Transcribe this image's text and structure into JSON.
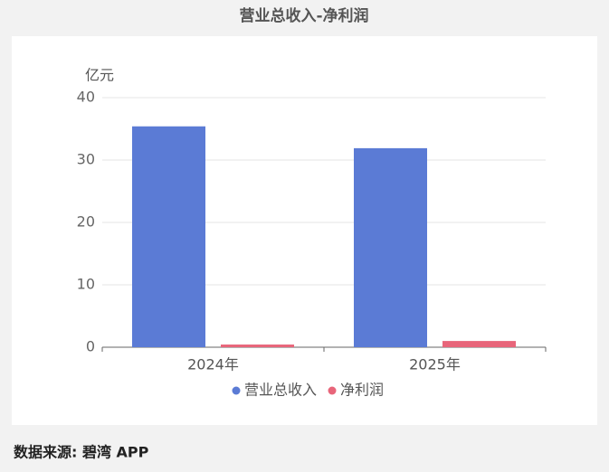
{
  "chart_data": {
    "type": "bar",
    "title": "营业总收入-净利润",
    "y_label": "亿元",
    "categories": [
      "2024年",
      "2025年"
    ],
    "series": [
      {
        "name": "营业总收入",
        "color": "#5b7bd5",
        "values": [
          35.4,
          31.9
        ]
      },
      {
        "name": "净利润",
        "color": "#e8657a",
        "values": [
          0.43,
          1.0
        ]
      }
    ],
    "ylim": [
      0,
      40
    ],
    "yticks": [
      0,
      10,
      20,
      30,
      40
    ],
    "grid": true,
    "legend": "bottom",
    "source": "数据来源: 碧湾 APP"
  }
}
